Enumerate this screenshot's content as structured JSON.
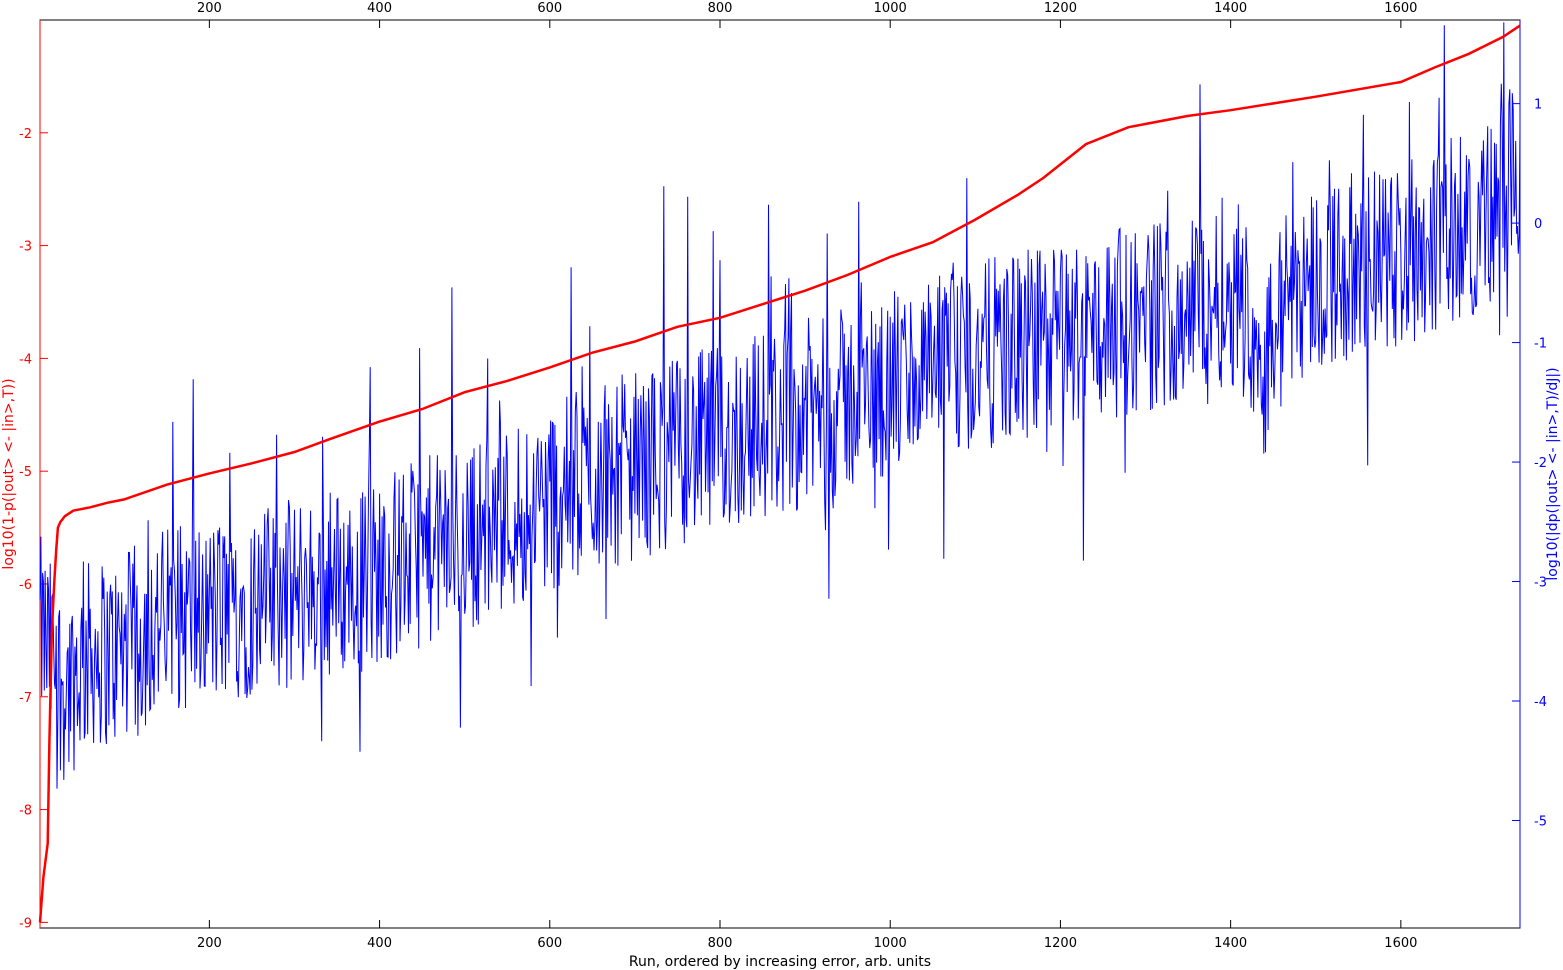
{
  "chart_data": {
    "type": "line",
    "xlabel": "Run, ordered by increasing error, arb. units",
    "ylabel_left": "log10(1-p(|out> <- |in>,T))",
    "ylabel_right": "log10(|dp(|out> <- |in>,T)/dJ|)",
    "xlim": [
      1,
      1740
    ],
    "ylim_left": [
      -9.05,
      -1.0
    ],
    "ylim_right": [
      -5.9,
      1.7
    ],
    "x_ticks": [
      200,
      400,
      600,
      800,
      1000,
      1200,
      1400,
      1600
    ],
    "x_tick_labels": [
      "200",
      "400",
      "600",
      "800",
      "1000",
      "1200",
      "1400",
      "1600"
    ],
    "y_left_ticks": [
      -2,
      -3,
      -4,
      -5,
      -6,
      -7,
      -8,
      -9
    ],
    "y_left_tick_labels": [
      "-2",
      "-3",
      "-4",
      "-5",
      "-6",
      "-7",
      "-8",
      "-9"
    ],
    "y_right_ticks": [
      1,
      0,
      -1,
      -2,
      -3,
      -4,
      -5
    ],
    "y_right_tick_labels": [
      "1",
      "0",
      "-1",
      "-2",
      "-3",
      "-4",
      "-5"
    ],
    "colors": {
      "left_series": "#ff0000",
      "right_series": "#0000ff",
      "axes": "#000000"
    },
    "series": [
      {
        "axis": "left",
        "x": [
          1,
          5,
          10,
          12,
          15,
          18,
          20,
          22,
          25,
          28,
          30,
          40,
          60,
          80,
          100,
          150,
          200,
          250,
          300,
          340,
          400,
          450,
          500,
          550,
          600,
          650,
          700,
          750,
          800,
          850,
          900,
          950,
          1000,
          1050,
          1100,
          1150,
          1180,
          1200,
          1230,
          1280,
          1350,
          1400,
          1500,
          1600,
          1640,
          1680,
          1720,
          1740
        ],
        "y": [
          -9.0,
          -8.6,
          -8.3,
          -7.4,
          -6.4,
          -5.95,
          -5.7,
          -5.5,
          -5.45,
          -5.42,
          -5.4,
          -5.35,
          -5.32,
          -5.28,
          -5.25,
          -5.12,
          -5.02,
          -4.93,
          -4.83,
          -4.72,
          -4.56,
          -4.45,
          -4.3,
          -4.2,
          -4.08,
          -3.95,
          -3.85,
          -3.72,
          -3.64,
          -3.52,
          -3.4,
          -3.26,
          -3.1,
          -2.97,
          -2.77,
          -2.55,
          -2.4,
          -2.28,
          -2.1,
          -1.95,
          -1.85,
          -1.8,
          -1.68,
          -1.55,
          -1.42,
          -1.3,
          -1.15,
          -1.05
        ]
      },
      {
        "axis": "right",
        "x": [
          1,
          30,
          60,
          90,
          120,
          150,
          180,
          210,
          240,
          270,
          300,
          330,
          360,
          390,
          420,
          450,
          480,
          510,
          540,
          570,
          600,
          630,
          660,
          690,
          720,
          750,
          780,
          810,
          840,
          870,
          900,
          930,
          960,
          990,
          1020,
          1050,
          1080,
          1110,
          1140,
          1170,
          1200,
          1230,
          1260,
          1290,
          1320,
          1350,
          1380,
          1410,
          1440,
          1470,
          1500,
          1530,
          1560,
          1590,
          1620,
          1650,
          1680,
          1710,
          1740
        ],
        "y": [
          -3.4,
          -3.9,
          -3.6,
          -3.6,
          -3.45,
          -3.3,
          -3.3,
          -3.25,
          -3.2,
          -3.15,
          -3.1,
          -3.05,
          -3.0,
          -2.95,
          -2.85,
          -2.75,
          -2.7,
          -2.6,
          -2.5,
          -2.4,
          -2.3,
          -2.2,
          -2.1,
          -2.05,
          -2.0,
          -1.9,
          -1.85,
          -1.8,
          -1.7,
          -1.65,
          -1.6,
          -1.55,
          -1.45,
          -1.4,
          -1.3,
          -1.25,
          -1.2,
          -1.1,
          -1.05,
          -1.0,
          -0.95,
          -0.9,
          -0.85,
          -0.8,
          -0.75,
          -0.7,
          -0.6,
          -0.55,
          -1.2,
          -0.55,
          -0.45,
          -0.4,
          -0.35,
          -0.3,
          -0.2,
          -0.1,
          0.0,
          0.1,
          0.5
        ]
      }
    ]
  }
}
